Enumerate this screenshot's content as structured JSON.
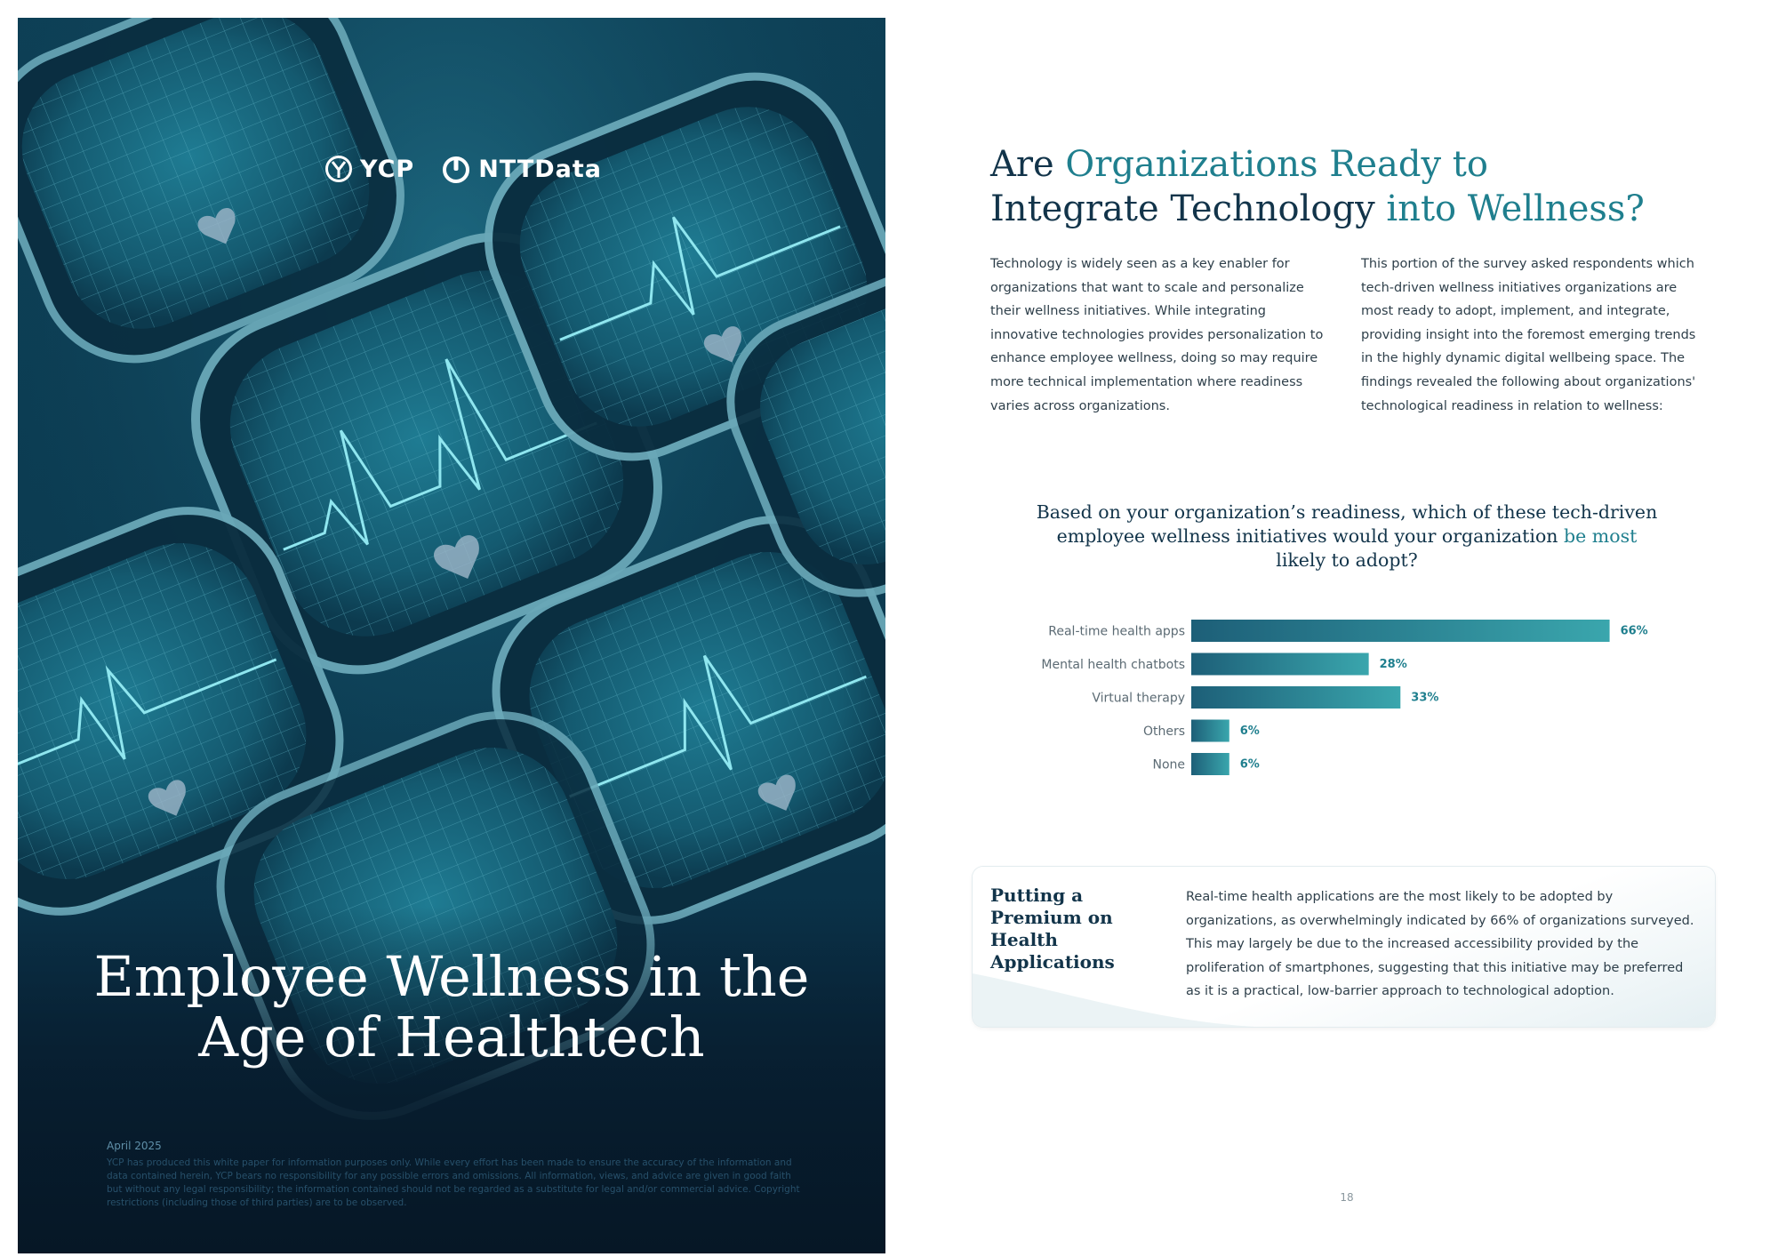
{
  "cover": {
    "logo_left": "YCP",
    "logo_right": "NTTData",
    "title_line1": "Employee Wellness in the",
    "title_line2": "Age of Healthtech",
    "date": "April 2025",
    "disclaimer": "YCP has produced this white paper for information purposes only. While every effort has been made to ensure the accuracy of the information and data contained herein, YCP bears no responsibility for any possible errors and omissions. All information, views, and advice are given in good faith but without any legal responsibility; the information contained should not be regarded as a substitute for legal and/or commercial advice. Copyright restrictions (including those of third parties) are to be observed."
  },
  "page": {
    "title_a": "Are ",
    "title_b": "Organizations Ready to",
    "title_c": "Integrate Technology ",
    "title_d": "into Wellness?",
    "col_left": "Technology is widely seen as a key enabler for organizations that want to scale and personalize their wellness initiatives. While integrating innovative technologies provides personalization to enhance employee wellness, doing so may require more technical implementation where readiness varies across organizations.",
    "col_right": "This portion of the survey asked respondents which tech-driven wellness initiatives organizations are most ready to adopt, implement, and integrate, providing insight into the foremost emerging trends in the highly dynamic digital wellbeing space. The findings revealed the following about organizations' technological readiness in relation to wellness:",
    "chart_question_a": "Based on your organization’s readiness, which of these tech-driven",
    "chart_question_b": "employee wellness initiatives would your organization ",
    "chart_question_c": "be most",
    "chart_question_d": "likely to adopt?",
    "callout_title": "Putting a Premium on Health Applications",
    "callout_text": "Real-time health applications are the most likely to be adopted by organizations, as overwhelmingly indicated by 66% of organizations surveyed. This may largely be due to the increased accessibility provided by the proliferation of smartphones, suggesting that this initiative may be preferred as it is a practical, low-barrier approach to technological adoption.",
    "page_number": "18"
  },
  "chart_data": {
    "type": "bar",
    "orientation": "horizontal",
    "categories": [
      "Real-time health apps",
      "Mental health chatbots",
      "Virtual therapy",
      "Others",
      "None"
    ],
    "values": [
      66,
      28,
      33,
      6,
      6
    ],
    "value_labels": [
      "66%",
      "28%",
      "33%",
      "6%",
      "6%"
    ],
    "xlim": [
      0,
      100
    ],
    "bar_color_start": "#1d5f78",
    "bar_color_end": "#3aa6ad",
    "grid": false
  },
  "colors": {
    "navy": "#12344a",
    "teal": "#1f7f8e",
    "cover_bg": "#0b3a50"
  }
}
